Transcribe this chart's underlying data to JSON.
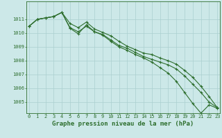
{
  "title": "Graphe pression niveau de la mer (hPa)",
  "background_color": "#cce8e8",
  "grid_color": "#aacfcf",
  "line_color": "#2d6e2d",
  "hours": [
    0,
    1,
    2,
    3,
    4,
    5,
    6,
    7,
    8,
    9,
    10,
    11,
    12,
    13,
    14,
    15,
    16,
    17,
    18,
    19,
    20,
    21,
    22,
    23
  ],
  "series1": [
    1010.5,
    1011.0,
    1011.1,
    1011.2,
    1011.5,
    1010.7,
    1010.4,
    1010.8,
    1010.3,
    1010.05,
    1009.8,
    1009.4,
    1009.05,
    1008.8,
    1008.55,
    1008.45,
    1008.2,
    1008.0,
    1007.75,
    1007.3,
    1006.8,
    1006.15,
    1005.4,
    1004.6
  ],
  "series2": [
    1010.5,
    1011.0,
    1011.1,
    1011.2,
    1011.5,
    1010.4,
    1010.1,
    1010.5,
    1010.1,
    1009.9,
    1009.5,
    1009.1,
    1008.9,
    1008.6,
    1008.3,
    1008.1,
    1007.9,
    1007.7,
    1007.4,
    1006.9,
    1006.3,
    1005.7,
    1005.0,
    1004.6
  ],
  "series3": [
    1010.5,
    1011.0,
    1011.1,
    1011.2,
    1011.5,
    1010.35,
    1009.95,
    1010.6,
    1010.1,
    1009.85,
    1009.4,
    1009.0,
    1008.75,
    1008.45,
    1008.2,
    1007.9,
    1007.5,
    1007.1,
    1006.5,
    1005.7,
    1004.9,
    1004.2,
    1004.8,
    1004.55
  ],
  "ylim_min": 1004.2,
  "ylim_max": 1012.3,
  "yticks": [
    1005,
    1006,
    1007,
    1008,
    1009,
    1010,
    1011
  ],
  "tick_fontsize": 5.0,
  "xlabel_fontsize": 6.5
}
